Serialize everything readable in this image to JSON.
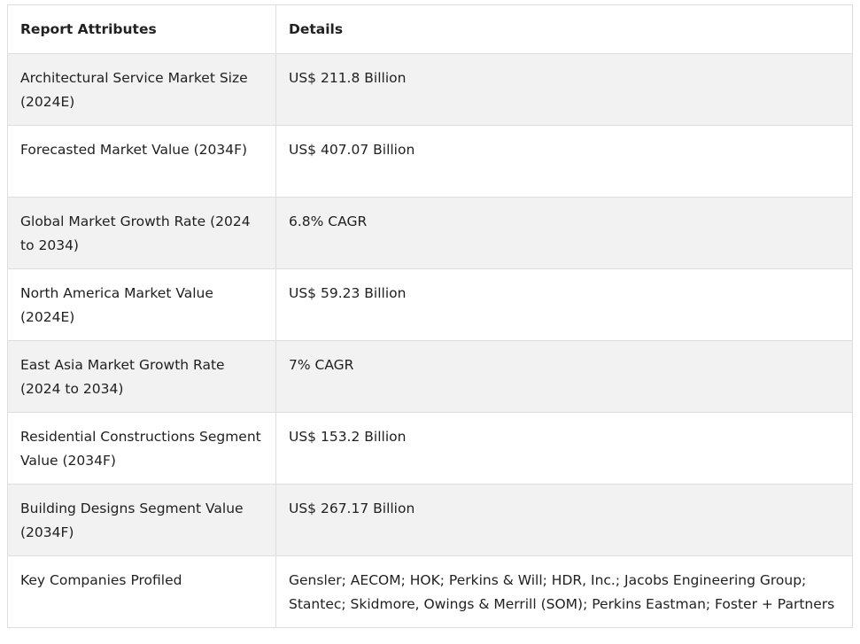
{
  "table": {
    "headers": [
      "Report Attributes",
      "Details"
    ],
    "rows": [
      {
        "attribute": "Architectural Service Market Size (2024E)",
        "detail": "US$ 211.8 Billion"
      },
      {
        "attribute": "Forecasted Market Value (2034F)",
        "detail": "US$ 407.07 Billion"
      },
      {
        "attribute": "Global Market Growth Rate (2024 to 2034)",
        "detail": "6.8% CAGR"
      },
      {
        "attribute": "North America Market Value (2024E)",
        "detail": "US$ 59.23 Billion"
      },
      {
        "attribute": "East Asia Market Growth Rate (2024 to 2034)",
        "detail": "7% CAGR"
      },
      {
        "attribute": "Residential Constructions Segment Value (2034F)",
        "detail": "US$ 153.2 Billion"
      },
      {
        "attribute": "Building Designs Segment Value (2034F)",
        "detail": "US$ 267.17 Billion"
      },
      {
        "attribute": "Key Companies Profiled",
        "detail": "Gensler; AECOM; HOK; Perkins & Will; HDR, Inc.; Jacobs Engineering Group; Stantec; Skidmore, Owings & Merrill (SOM); Perkins Eastman; Foster + Partners"
      }
    ],
    "colors": {
      "stripe": "#f2f2f2",
      "border": "#dcdde0",
      "text": "#212121"
    }
  }
}
